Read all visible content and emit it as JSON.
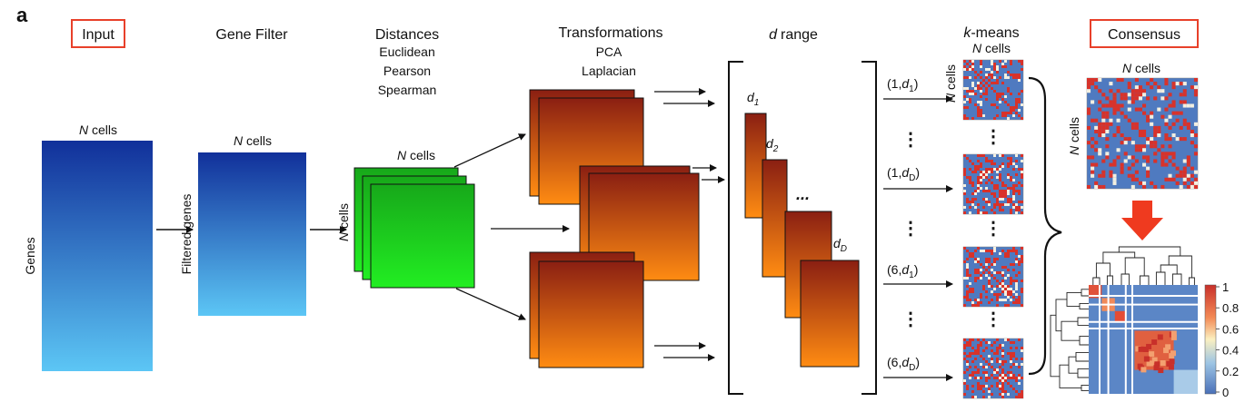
{
  "panel_letter": "a",
  "stages": {
    "input": "Input",
    "gene_filter": "Gene Filter",
    "distances": "Distances",
    "transformations": "Transformations",
    "d_range": "range",
    "d_symbol": "d",
    "kmeans": "-means",
    "k_symbol": "k",
    "consensus": "Consensus"
  },
  "distance_types": [
    "Euclidean",
    "Pearson",
    "Spearman"
  ],
  "transformation_types": [
    "PCA",
    "Laplacian"
  ],
  "axis_labels": {
    "n_symbol": "N",
    "cells_suffix": " cells",
    "genes": "Genes",
    "filtered_genes": "Filtered genes"
  },
  "d_labels": [
    {
      "sym": "d",
      "sub": "1"
    },
    {
      "sym": "d",
      "sub": "2"
    },
    {
      "sym": "d",
      "sub": "D"
    }
  ],
  "ellipsis": "...",
  "vdots": "⋮",
  "kmeans_rows": [
    {
      "prefix": "(1,",
      "sym": "d",
      "sub": "1",
      "suffix": ")"
    },
    {
      "prefix": "(1,",
      "sym": "d",
      "sub": "D",
      "suffix": ")"
    },
    {
      "prefix": "(6,",
      "sym": "d",
      "sub": "1",
      "suffix": ")"
    },
    {
      "prefix": "(6,",
      "sym": "d",
      "sub": "D",
      "suffix": ")"
    }
  ],
  "colorbar_ticks": [
    "1",
    "0.8",
    "0.6",
    "0.4",
    "0.2",
    "0"
  ],
  "colors": {
    "highlight_box": "#e8402a",
    "blue_top": "#11309a",
    "blue_bottom": "#5cc6f5",
    "green_top": "#17a81a",
    "green_bottom": "#22ee22",
    "orange_top": "#8a1f12",
    "orange_bottom": "#ff8c12",
    "matrix_blue": "#4f7ac0",
    "matrix_red": "#d8322a",
    "arrow_red": "#ef3a1f"
  }
}
